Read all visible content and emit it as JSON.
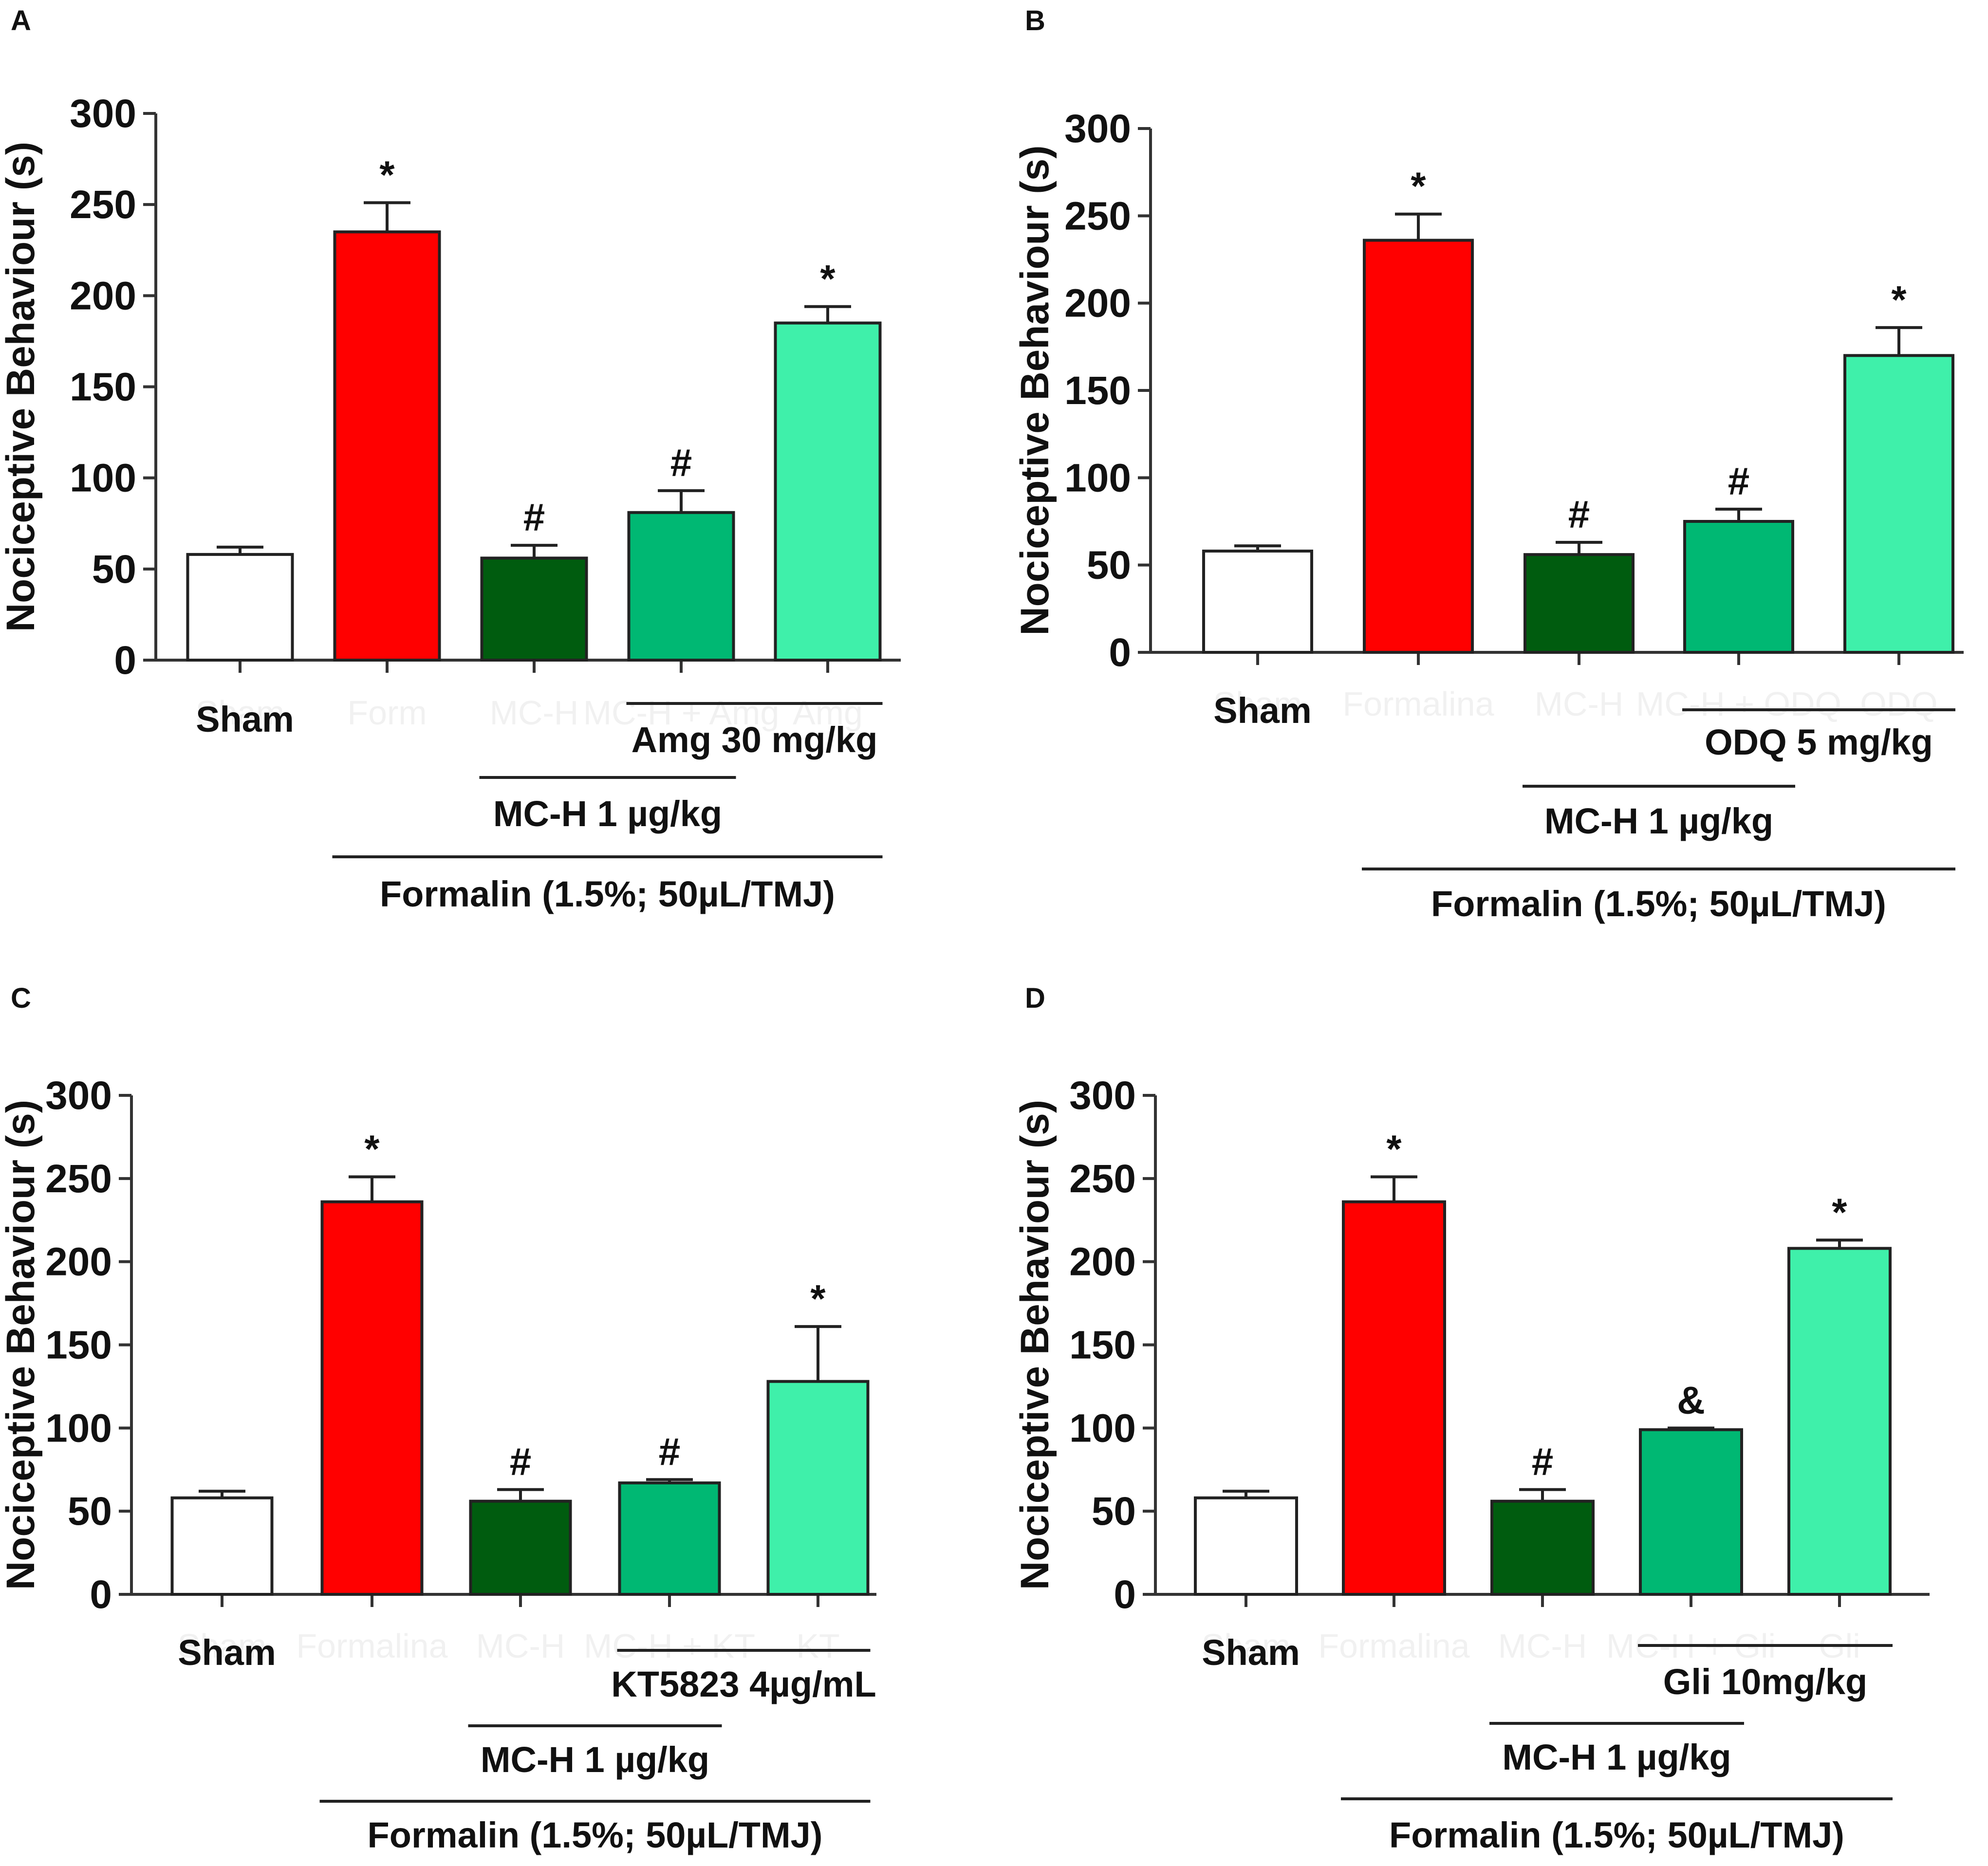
{
  "colors": {
    "sham": "#ffffff",
    "formalin": "#ff0000",
    "mc_h": "#005c0f",
    "combo_low": "#00b873",
    "combo_high": "#3ff0aa",
    "stroke": "#222222"
  },
  "chart_data": [
    {
      "panel": "A",
      "type": "bar",
      "ylabel": "Nociceptive Behaviour (s)",
      "ylim": [
        0,
        300
      ],
      "yticks": [
        0,
        50,
        100,
        150,
        200,
        250,
        300
      ],
      "categories": [
        "Sham",
        "Form",
        "MC-H",
        "MC-H + Amg",
        "Amg"
      ],
      "category_labels_visible": [
        "Sham",
        "",
        "",
        "",
        ""
      ],
      "values": [
        58,
        235,
        56,
        81,
        185
      ],
      "errors": [
        4,
        16,
        7,
        12,
        9
      ],
      "annotations": [
        "",
        "*",
        "#",
        "#",
        "*"
      ],
      "color_keys": [
        "sham",
        "formalin",
        "mc_h",
        "combo_low",
        "combo_high"
      ],
      "groups": [
        {
          "label": "Amg 30 mg/kg",
          "from": 3,
          "to": 4
        },
        {
          "label": "MC-H 1 µg/kg",
          "from": 2,
          "to": 3
        },
        {
          "label": "Formalin (1.5%; 50µL/TMJ)",
          "from": 1,
          "to": 4
        }
      ]
    },
    {
      "panel": "B",
      "type": "bar",
      "ylabel": "Nociceptive Behaviour (s)",
      "ylim": [
        0,
        300
      ],
      "yticks": [
        0,
        50,
        100,
        150,
        200,
        250,
        300
      ],
      "categories": [
        "Sham",
        "Formalina",
        "MC-H",
        "MC-H + ODQ",
        "ODQ"
      ],
      "category_labels_visible": [
        "Sham",
        "",
        "",
        "",
        ""
      ],
      "values": [
        58,
        236,
        56,
        75,
        170
      ],
      "errors": [
        3,
        15,
        7,
        7,
        16
      ],
      "annotations": [
        "",
        "*",
        "#",
        "#",
        "*"
      ],
      "color_keys": [
        "sham",
        "formalin",
        "mc_h",
        "combo_low",
        "combo_high"
      ],
      "groups": [
        {
          "label": "ODQ 5 mg/kg",
          "from": 3,
          "to": 4
        },
        {
          "label": "MC-H 1 µg/kg",
          "from": 2,
          "to": 3
        },
        {
          "label": "Formalin (1.5%; 50µL/TMJ)",
          "from": 1,
          "to": 4
        }
      ]
    },
    {
      "panel": "C",
      "type": "bar",
      "ylabel": "Nociceptive Behaviour (s)",
      "ylim": [
        0,
        300
      ],
      "yticks": [
        0,
        50,
        100,
        150,
        200,
        250,
        300
      ],
      "categories": [
        "Sham",
        "Formalina",
        "MC-H",
        "MC-H + KT",
        "KT"
      ],
      "category_labels_visible": [
        "Sham",
        "",
        "",
        "",
        ""
      ],
      "values": [
        58,
        236,
        56,
        67,
        128
      ],
      "errors": [
        4,
        15,
        7,
        2,
        33
      ],
      "annotations": [
        "",
        "*",
        "#",
        "#",
        "*"
      ],
      "color_keys": [
        "sham",
        "formalin",
        "mc_h",
        "combo_low",
        "combo_high"
      ],
      "groups": [
        {
          "label": "KT5823 4µg/mL",
          "from": 3,
          "to": 4
        },
        {
          "label": "MC-H 1 µg/kg",
          "from": 2,
          "to": 3
        },
        {
          "label": "Formalin (1.5%; 50µL/TMJ)",
          "from": 1,
          "to": 4
        }
      ]
    },
    {
      "panel": "D",
      "type": "bar",
      "ylabel": "Nociceptive Behaviour (s)",
      "ylim": [
        0,
        300
      ],
      "yticks": [
        0,
        50,
        100,
        150,
        200,
        250,
        300
      ],
      "categories": [
        "Sham",
        "Formalina",
        "MC-H",
        "MC-H + Gli",
        "Gli"
      ],
      "category_labels_visible": [
        "Sham",
        "",
        "",
        "",
        ""
      ],
      "values": [
        58,
        236,
        56,
        99,
        208
      ],
      "errors": [
        4,
        15,
        7,
        1,
        5
      ],
      "annotations": [
        "",
        "*",
        "#",
        "&",
        "*"
      ],
      "color_keys": [
        "sham",
        "formalin",
        "mc_h",
        "combo_low",
        "combo_high"
      ],
      "groups": [
        {
          "label": "Gli 10mg/kg",
          "from": 3,
          "to": 4
        },
        {
          "label": "MC-H 1 µg/kg",
          "from": 2,
          "to": 3
        },
        {
          "label": "Formalin (1.5%; 50µL/TMJ)",
          "from": 1,
          "to": 4
        }
      ]
    }
  ]
}
